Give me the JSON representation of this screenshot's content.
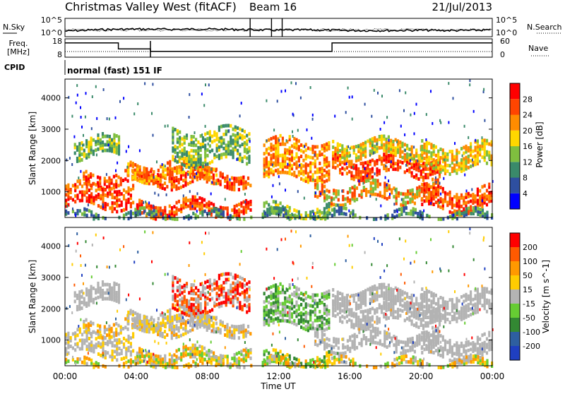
{
  "header": {
    "title": "Christmas Valley West (fitACF)",
    "beam": "Beam 16",
    "date": "21/Jul/2013"
  },
  "noise_panel": {
    "left_label": "N.Sky",
    "right_label": "N.Search",
    "left_ticks": [
      "10^5",
      "10^0"
    ],
    "right_ticks": [
      "10^5",
      "10^0"
    ]
  },
  "freq_panel": {
    "left_label_1": "Freq.",
    "left_label_2": "[MHz]",
    "right_label": "Nave",
    "left_ticks": [
      "18",
      "8"
    ],
    "right_ticks": [
      "60",
      "0"
    ]
  },
  "cpid": {
    "label": "CPID",
    "mode": "normal (fast) 151 IF"
  },
  "colors": {
    "power_scale": [
      "#0000ff",
      "#2e4fa0",
      "#3a8a6a",
      "#7fbf3f",
      "#ffd700",
      "#ff8c00",
      "#ff4500",
      "#ff0000"
    ],
    "velocity_scale": [
      "#ff0000",
      "#ff5a00",
      "#ff9900",
      "#ffcc00",
      "#b3b3b3",
      "#66cc33",
      "#338833",
      "#2e5fa0",
      "#1f3fc0"
    ],
    "ground_scatter": "#b3b3b3"
  },
  "chart_data": [
    {
      "type": "line",
      "name": "noise",
      "title": "",
      "ylabel": "N.Sky",
      "y2label": "N.Search",
      "xlim": [
        0,
        24
      ],
      "series": [
        {
          "name": "N.Sky",
          "x": [
            0,
            2,
            4,
            6,
            8,
            10,
            12,
            14,
            16,
            18,
            20,
            22,
            24
          ],
          "values": [
            1.5,
            2.0,
            2.2,
            2.1,
            2.2,
            2.0,
            1.8,
            1.9,
            1.7,
            1.7,
            1.8,
            1.7,
            1.9
          ]
        }
      ]
    },
    {
      "type": "line",
      "name": "frequency",
      "title": "",
      "ylabel": "Freq. [MHz]",
      "y2label": "Nave",
      "ylim": [
        8,
        18
      ],
      "xlim": [
        0,
        24
      ],
      "series": [
        {
          "name": "Freq.",
          "x": [
            0,
            3,
            3,
            4.8,
            4.8,
            10.5,
            11.5,
            15,
            15,
            24
          ],
          "values": [
            16,
            16,
            12.5,
            12.5,
            11,
            11,
            11,
            11,
            16,
            16
          ]
        }
      ]
    },
    {
      "type": "heatmap",
      "name": "power",
      "xlabel": "",
      "ylabel": "Slant Range [km]",
      "colorbar_label": "Power [dB]",
      "colorbar_ticks": [
        "28",
        "24",
        "20",
        "16",
        "12",
        "8",
        "4"
      ],
      "y_ticks": [
        "4000",
        "3000",
        "2000",
        "1000"
      ],
      "ylim": [
        180,
        4600
      ],
      "xlim": [
        0,
        24
      ],
      "clim": [
        0,
        32
      ]
    },
    {
      "type": "heatmap",
      "name": "velocity",
      "xlabel": "Time UT",
      "ylabel": "Slant Range [km]",
      "colorbar_label": "Velocity [m s^-1]",
      "colorbar_ticks": [
        "200",
        "100",
        "50",
        "15",
        "-15",
        "-50",
        "-100",
        "-200"
      ],
      "y_ticks": [
        "4000",
        "3000",
        "2000",
        "1000"
      ],
      "x_ticks": [
        "00:00",
        "04:00",
        "08:00",
        "12:00",
        "16:00",
        "20:00",
        "00:00"
      ],
      "ylim": [
        180,
        4600
      ],
      "xlim": [
        0,
        24
      ]
    }
  ]
}
